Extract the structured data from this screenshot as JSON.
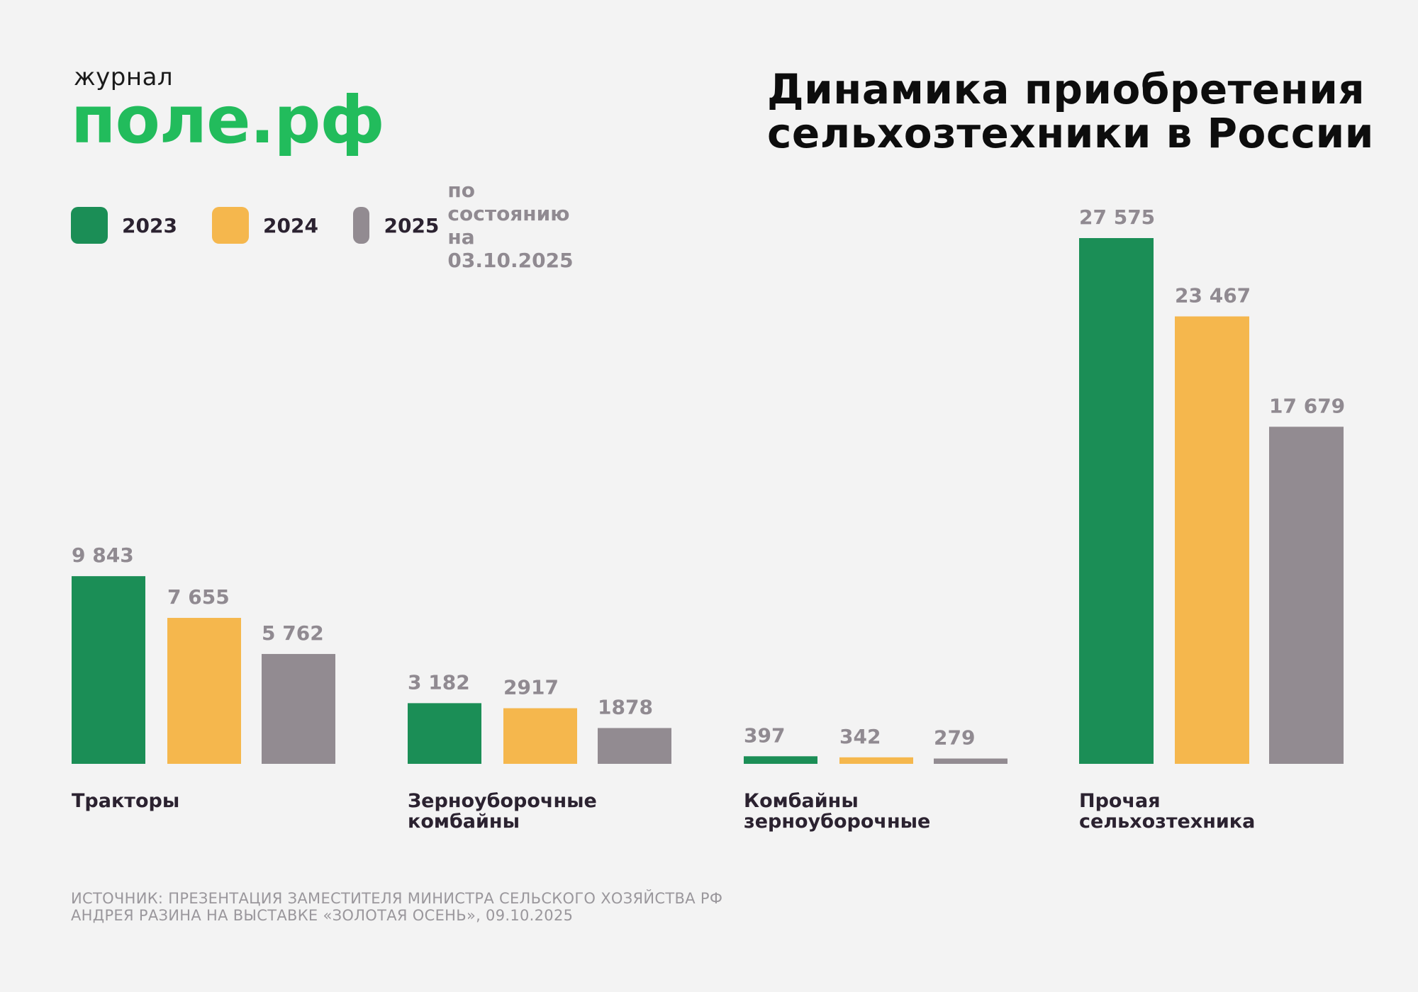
{
  "logo": {
    "small": "журнал",
    "big": "поле.рф"
  },
  "title": "Динамика приобретения\nсельхозтехники в России",
  "legend": [
    {
      "year": "2023",
      "note": "",
      "color": "#1b8e56"
    },
    {
      "year": "2024",
      "note": "",
      "color": "#f5b74d"
    },
    {
      "year": "2025",
      "note": "по состоянию на 03.10.2025",
      "color": "#928b91"
    }
  ],
  "source": "ИСТОЧНИК: ПРЕЗЕНТАЦИЯ ЗАМЕСТИТЕЛЯ МИНИСТРА СЕЛЬСКОГО ХОЗЯЙСТВА РФ\nАНДРЕЯ РАЗИНА НА ВЫСТАВКЕ «ЗОЛОТАЯ ОСЕНЬ», 09.10.2025",
  "chart_data": {
    "type": "bar",
    "title": "Динамика приобретения сельхозтехники в России",
    "xlabel": "",
    "ylabel": "",
    "categories": [
      "Тракторы",
      "Зерноуборочные\nкомбайны",
      "Комбайны\nзерноуборочные",
      "Прочая\nсельхозтехника"
    ],
    "series": [
      {
        "name": "2023",
        "color": "#1b8e56",
        "values": [
          9843,
          3182,
          397,
          27575
        ],
        "labels": [
          "9 843",
          "3 182",
          "397",
          "27 575"
        ]
      },
      {
        "name": "2024",
        "color": "#f5b74d",
        "values": [
          7655,
          2917,
          342,
          23467
        ],
        "labels": [
          "7 655",
          "2917",
          "342",
          "23 467"
        ]
      },
      {
        "name": "2025",
        "color": "#928b91",
        "values": [
          5762,
          1878,
          279,
          17679
        ],
        "labels": [
          "5 762",
          "1878",
          "279",
          "17 679"
        ]
      }
    ],
    "value_label_color": "#908a91",
    "grid": false,
    "legend": "top-left"
  }
}
